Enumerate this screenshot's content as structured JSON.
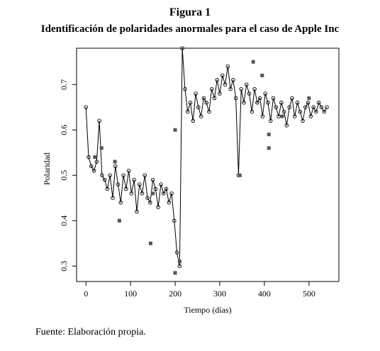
{
  "chart_data": {
    "type": "line",
    "figure_label": "Figura 1",
    "title": "Identificación de polaridades anormales para el caso de Apple Inc",
    "x_label": "Tiempo (días)",
    "y_label": "Polaridad",
    "source": "Fuente: Elaboración propia.",
    "xlim": [
      -21,
      567
    ],
    "ylim": [
      0.266,
      0.78
    ],
    "xticks": [
      0,
      100,
      200,
      300,
      400,
      500
    ],
    "yticks": [
      0.3,
      0.4,
      0.5,
      0.6,
      0.7
    ],
    "series": [
      {
        "color": "#000000",
        "marker": "circle",
        "x": [
          0,
          6,
          12,
          18,
          24,
          30,
          36,
          42,
          48,
          54,
          60,
          66,
          72,
          78,
          84,
          90,
          96,
          102,
          108,
          114,
          120,
          126,
          132,
          138,
          144,
          150,
          156,
          162,
          168,
          174,
          180,
          186,
          192,
          198,
          204,
          210,
          216,
          222,
          228,
          234,
          240,
          246,
          252,
          258,
          264,
          270,
          276,
          282,
          288,
          294,
          300,
          306,
          312,
          318,
          324,
          330,
          336,
          342,
          348,
          354,
          360,
          366,
          372,
          378,
          384,
          390,
          396,
          402,
          408,
          414,
          420,
          426,
          432,
          438,
          444,
          450,
          456,
          462,
          468,
          474,
          480,
          486,
          492,
          498,
          504,
          510,
          516,
          522,
          528,
          534,
          540
        ],
        "values": [
          0.65,
          0.54,
          0.52,
          0.51,
          0.53,
          0.62,
          0.5,
          0.49,
          0.47,
          0.5,
          0.45,
          0.52,
          0.48,
          0.44,
          0.5,
          0.47,
          0.51,
          0.46,
          0.49,
          0.42,
          0.48,
          0.46,
          0.5,
          0.45,
          0.44,
          0.49,
          0.47,
          0.43,
          0.48,
          0.46,
          0.47,
          0.44,
          0.46,
          0.4,
          0.33,
          0.3,
          0.78,
          0.69,
          0.64,
          0.66,
          0.62,
          0.68,
          0.65,
          0.63,
          0.67,
          0.66,
          0.64,
          0.69,
          0.67,
          0.71,
          0.68,
          0.72,
          0.7,
          0.74,
          0.69,
          0.71,
          0.67,
          0.5,
          0.69,
          0.66,
          0.7,
          0.68,
          0.64,
          0.69,
          0.66,
          0.67,
          0.63,
          0.68,
          0.66,
          0.62,
          0.67,
          0.65,
          0.63,
          0.66,
          0.64,
          0.61,
          0.65,
          0.67,
          0.63,
          0.66,
          0.64,
          0.62,
          0.65,
          0.66,
          0.63,
          0.65,
          0.64,
          0.66,
          0.65,
          0.64,
          0.65
        ]
      },
      {
        "color": "#555555",
        "marker": "square",
        "x": [
          20,
          35,
          65,
          75,
          145,
          150,
          200,
          200,
          210,
          345,
          375,
          395,
          410,
          410,
          440,
          500
        ],
        "values": [
          0.54,
          0.56,
          0.53,
          0.4,
          0.35,
          0.46,
          0.6,
          0.285,
          0.31,
          0.5,
          0.75,
          0.72,
          0.59,
          0.56,
          0.63,
          0.67
        ]
      }
    ]
  }
}
